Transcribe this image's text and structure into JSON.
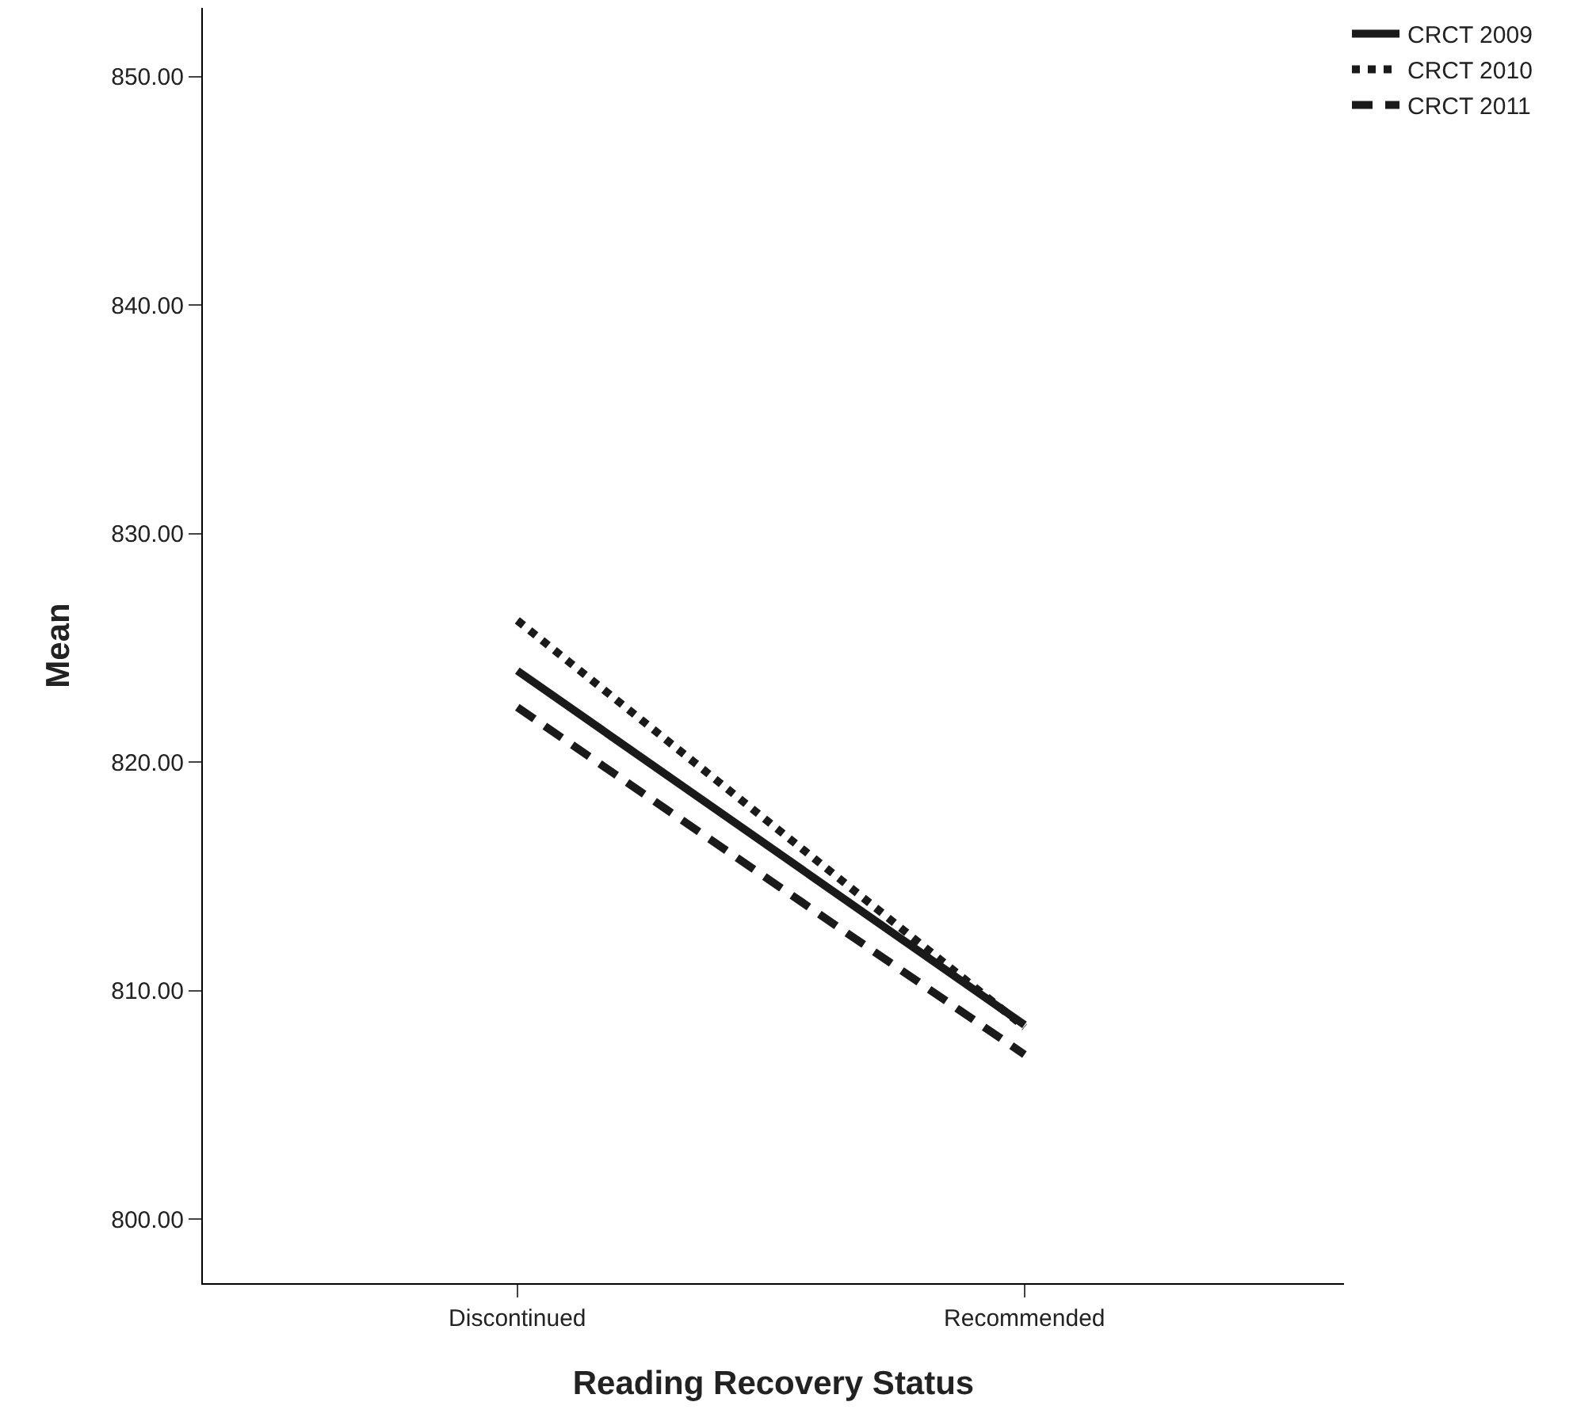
{
  "chart_data": {
    "type": "line",
    "xlabel": "Reading Recovery Status",
    "ylabel": "Mean",
    "categories": [
      "Discontinued",
      "Recommended"
    ],
    "series": [
      {
        "name": "CRCT 2009",
        "color": "#1a1a1a",
        "values": [
          824.0,
          808.5
        ],
        "line_style": "solid"
      },
      {
        "name": "CRCT 2010",
        "color": "#1a1a1a",
        "values": [
          826.2,
          808.4
        ],
        "line_style": "dotted"
      },
      {
        "name": "CRCT 2011",
        "color": "#1a1a1a",
        "values": [
          822.4,
          807.2
        ],
        "line_style": "dashed"
      }
    ],
    "ylim": [
      797.2,
      853.0
    ],
    "yticks": [
      {
        "value": 800,
        "label": "800.00"
      },
      {
        "value": 810,
        "label": "810.00"
      },
      {
        "value": 820,
        "label": "820.00"
      },
      {
        "value": 830,
        "label": "830.00"
      },
      {
        "value": 840,
        "label": "840.00"
      },
      {
        "value": 850,
        "label": "850.00"
      }
    ],
    "legend": "top right",
    "marker": "none"
  }
}
